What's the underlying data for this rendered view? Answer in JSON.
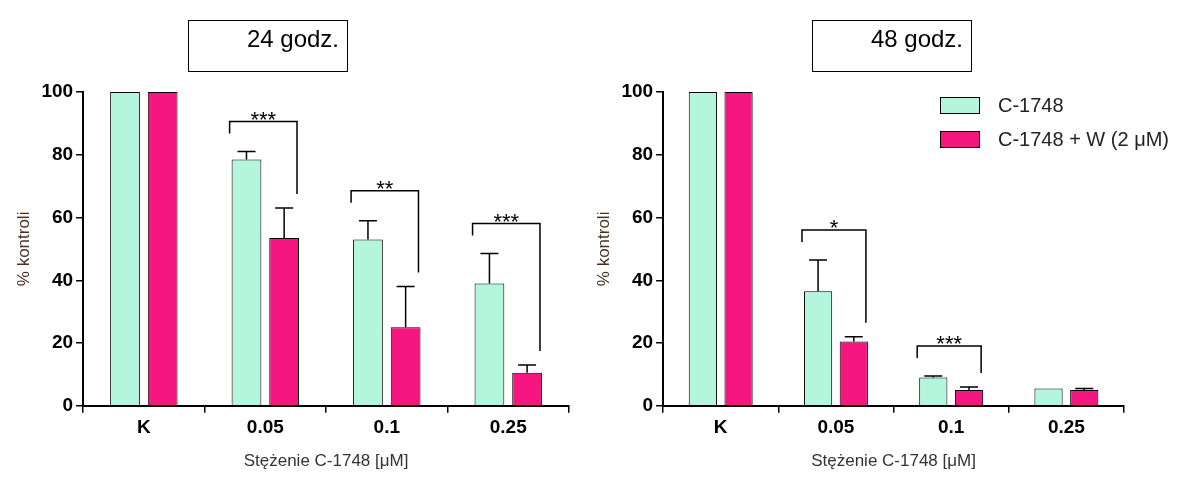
{
  "chart_data": [
    {
      "type": "bar",
      "title": "24 godz.",
      "xlabel": "Stężenie C-1748 [μM]",
      "ylabel": "% kontroli",
      "categories": [
        "K",
        "0.05",
        "0.1",
        "0.25"
      ],
      "series": [
        {
          "color": "#b3f5dd",
          "values": [
            100,
            78.5,
            53,
            39
          ],
          "errors": [
            null,
            [
              78.5,
              81
            ],
            [
              53,
              59
            ],
            [
              39,
              48.5
            ]
          ]
        },
        {
          "color": "#f5177f",
          "values": [
            100,
            53.5,
            25,
            10.5
          ],
          "errors": [
            null,
            [
              53.5,
              63
            ],
            [
              25,
              38
            ],
            [
              10.5,
              13
            ]
          ]
        }
      ],
      "ylim": [
        0,
        100
      ],
      "yticks": [
        0,
        20,
        40,
        60,
        80,
        100
      ],
      "grid": false,
      "legend": false,
      "annotations": [
        "***",
        "**",
        "***"
      ]
    },
    {
      "type": "bar",
      "title": "48 godz.",
      "xlabel": "Stężenie C-1748 [μM]",
      "ylabel": "% kontroli",
      "categories": [
        "K",
        "0.05",
        "0.1",
        "0.25"
      ],
      "series": [
        {
          "name": "C-1748",
          "color": "#b3f5dd",
          "values": [
            100,
            36.5,
            9,
            5.5
          ],
          "errors": [
            null,
            [
              36.5,
              46.5
            ],
            [
              9,
              9.5
            ],
            null
          ]
        },
        {
          "name": "C-1748 + W (2 μM)",
          "color": "#f5177f",
          "values": [
            100,
            20.5,
            5,
            5
          ],
          "errors": [
            null,
            [
              20.5,
              22
            ],
            [
              5,
              6
            ],
            [
              5,
              5.5
            ]
          ]
        }
      ],
      "ylim": [
        0,
        100
      ],
      "yticks": [
        0,
        20,
        40,
        60,
        80,
        100
      ],
      "grid": false,
      "legend": "top right",
      "annotations": [
        "*",
        "***"
      ]
    }
  ]
}
